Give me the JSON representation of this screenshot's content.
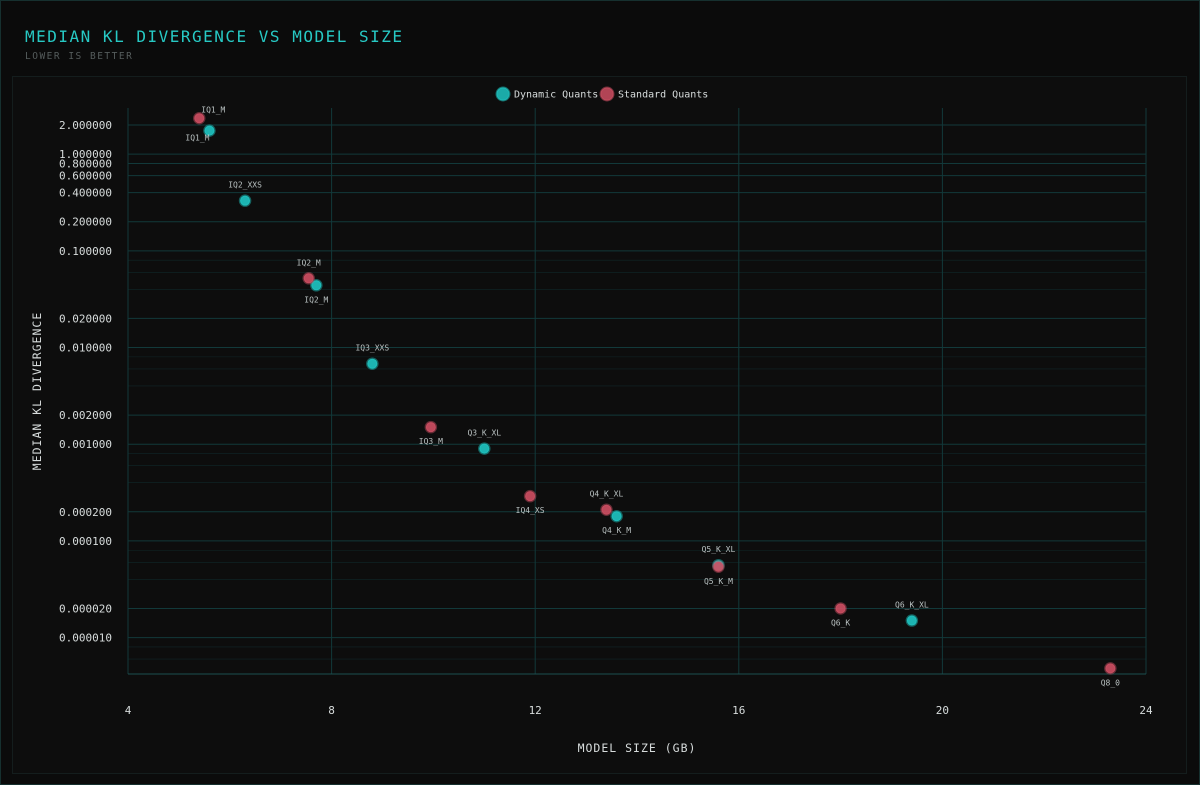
{
  "header": {
    "title": "MEDIAN KL DIVERGENCE VS MODEL SIZE",
    "subtitle": "LOWER IS BETTER"
  },
  "colors": {
    "dynamic": "#1fc7c4",
    "standard": "#cf4f63",
    "grid": "#12393a"
  },
  "chart_data": {
    "type": "scatter",
    "xlabel": "MODEL SIZE (GB)",
    "ylabel": "MEDIAN KL DIVERGENCE",
    "xlim": [
      4,
      24
    ],
    "x_ticks": [
      4,
      8,
      12,
      16,
      20,
      24
    ],
    "y_scale": "log",
    "ylim": [
      4.2e-06,
      3.0
    ],
    "y_ticks": [
      2.0,
      1.0,
      0.8,
      0.6,
      0.4,
      0.2,
      0.1,
      0.02,
      0.01,
      0.002,
      0.001,
      0.0002,
      0.0001,
      2e-05,
      1e-05
    ],
    "y_tick_labels": [
      "2.000000",
      "1.000000",
      "0.800000",
      "0.600000",
      "0.400000",
      "0.200000",
      "0.100000",
      "0.020000",
      "0.010000",
      "0.002000",
      "0.001000",
      "0.000200",
      "0.000100",
      "0.000020",
      "0.000010"
    ],
    "y_minor_grid": [
      0.08,
      0.06,
      0.04,
      0.008,
      0.006,
      0.004,
      0.0008,
      0.0006,
      0.0004,
      8e-05,
      6e-05,
      4e-05,
      8e-06,
      6e-06
    ],
    "grid": true,
    "legend_position": "top-center",
    "series": [
      {
        "name": "Dynamic Quants",
        "color_key": "dynamic",
        "points": [
          {
            "label": "IQ1_M",
            "x": 5.6,
            "y": 1.75,
            "label_pos": "below-left"
          },
          {
            "label": "IQ2_XXS",
            "x": 6.3,
            "y": 0.33,
            "label_pos": "above"
          },
          {
            "label": "IQ2_M",
            "x": 7.7,
            "y": 0.044,
            "label_pos": "below"
          },
          {
            "label": "IQ3_XXS",
            "x": 8.8,
            "y": 0.0068,
            "label_pos": "above"
          },
          {
            "label": "Q3_K_XL",
            "x": 11.0,
            "y": 0.0009,
            "label_pos": "above"
          },
          {
            "label": "Q4_K_M",
            "x": 13.6,
            "y": 0.00018,
            "label_pos": "below"
          },
          {
            "label": "Q5_K_XL",
            "x": 15.6,
            "y": 5.6e-05,
            "label_pos": "above"
          },
          {
            "label": "Q6_K_XL",
            "x": 19.4,
            "y": 1.5e-05,
            "label_pos": "above"
          }
        ]
      },
      {
        "name": "Standard Quants",
        "color_key": "standard",
        "points": [
          {
            "label": "IQ1_M",
            "x": 5.4,
            "y": 2.35,
            "label_pos": "above-right"
          },
          {
            "label": "IQ2_M",
            "x": 7.55,
            "y": 0.052,
            "label_pos": "above"
          },
          {
            "label": "IQ3_M",
            "x": 9.95,
            "y": 0.0015,
            "label_pos": "below"
          },
          {
            "label": "IQ4_XS",
            "x": 11.9,
            "y": 0.00029,
            "label_pos": "below"
          },
          {
            "label": "Q4_K_XL",
            "x": 13.4,
            "y": 0.00021,
            "label_pos": "above"
          },
          {
            "label": "Q5_K_M",
            "x": 15.6,
            "y": 5.4e-05,
            "label_pos": "below"
          },
          {
            "label": "Q6_K",
            "x": 18.0,
            "y": 2e-05,
            "label_pos": "below"
          },
          {
            "label": "Q8_0",
            "x": 23.3,
            "y": 4.8e-06,
            "label_pos": "below"
          }
        ]
      }
    ]
  }
}
